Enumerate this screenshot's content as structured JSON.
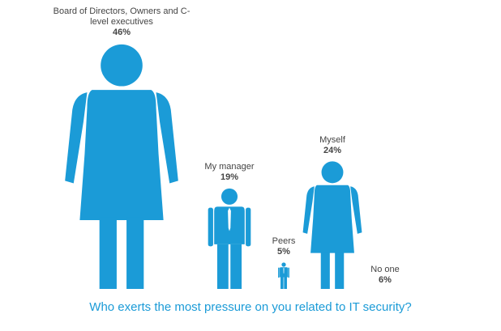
{
  "chart_data": {
    "type": "pictogram",
    "title": "Who exerts the most pressure on you related to IT security?",
    "categories": [
      "Board of Directors, Owners and C-level executives",
      "My manager",
      "Peers",
      "Myself",
      "No one"
    ],
    "values": [
      46,
      19,
      5,
      24,
      6
    ],
    "value_labels": [
      "46%",
      "19%",
      "5%",
      "24%",
      "6%"
    ],
    "figures": [
      "woman",
      "man",
      "man",
      "woman",
      null
    ],
    "color": "#1b9bd7"
  }
}
